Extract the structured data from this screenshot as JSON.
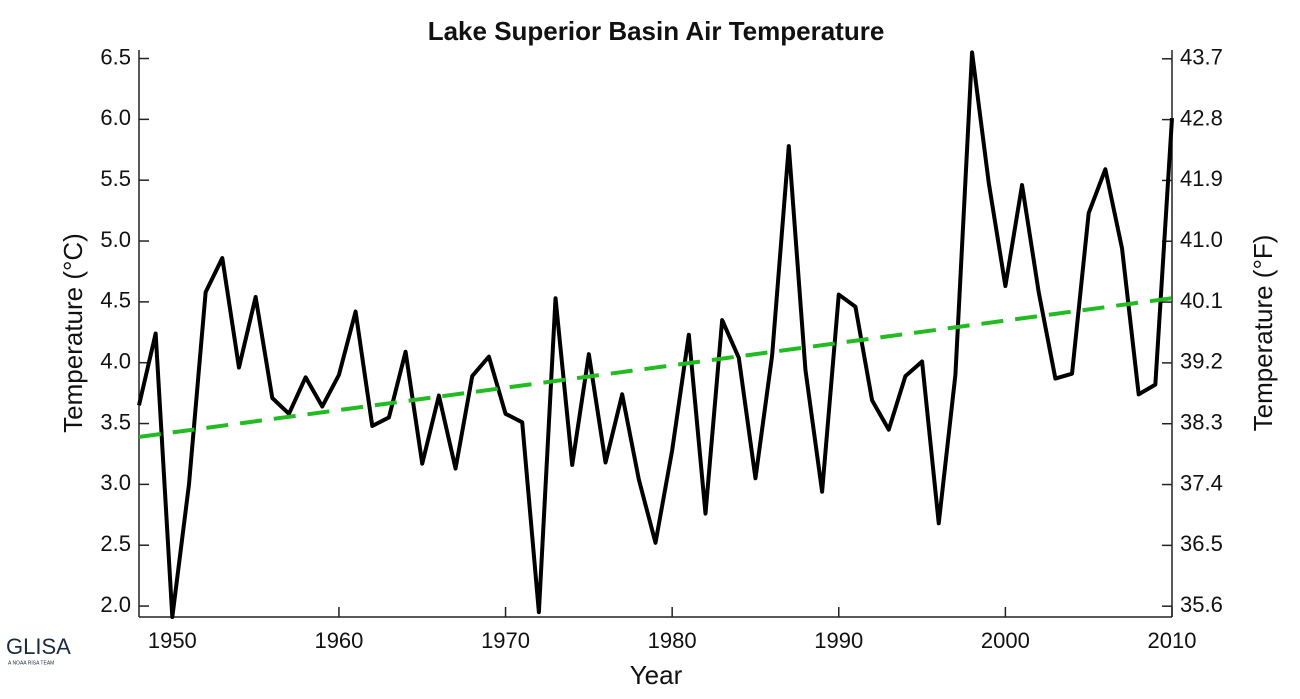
{
  "chart_data": {
    "type": "line",
    "title": "Lake Superior Basin Air Temperature",
    "x_label": "Year",
    "y_label": "Temperature (°C)",
    "y2_label": "Temperature (°F)",
    "xlim": [
      1948,
      2010
    ],
    "xticks": [
      1950,
      1960,
      1970,
      1980,
      1990,
      2000,
      2010
    ],
    "ylim": [
      1.91,
      6.57
    ],
    "yticks": [
      {
        "value": 2,
        "label": "2.0"
      },
      2.5,
      {
        "value": 3,
        "label": "3.0"
      },
      3.5,
      {
        "value": 4,
        "label": "4.0"
      },
      4.5,
      {
        "value": 5,
        "label": "5.0"
      },
      5.5,
      {
        "value": 6,
        "label": "6.0"
      },
      6.5
    ],
    "y2lim": [
      35.44,
      43.83
    ],
    "y2ticks": [
      35.6,
      36.5,
      37.4,
      38.3,
      39.2,
      {
        "value": 41,
        "label": "41.0"
      },
      40.1,
      41.9,
      42.8,
      43.7
    ],
    "series": [
      {
        "color": "#000000",
        "x": [
          1948,
          1949,
          1950,
          1951,
          1952,
          1953,
          1954,
          1955,
          1956,
          1957,
          1958,
          1959,
          1960,
          1961,
          1962,
          1963,
          1964,
          1965,
          1966,
          1967,
          1968,
          1969,
          1970,
          1971,
          1972,
          1973,
          1974,
          1975,
          1976,
          1977,
          1978,
          1979,
          1980,
          1981,
          1982,
          1983,
          1984,
          1985,
          1986,
          1987,
          1988,
          1989,
          1990,
          1991,
          1992,
          1993,
          1994,
          1995,
          1996,
          1997,
          1998,
          1999,
          2000,
          2001,
          2002,
          2003,
          2004,
          2005,
          2006,
          2007,
          2008,
          2009,
          2010
        ],
        "values": [
          3.65,
          4.24,
          1.91,
          3.0,
          4.58,
          4.86,
          3.96,
          4.54,
          3.71,
          3.58,
          3.88,
          3.64,
          3.9,
          4.42,
          3.48,
          3.55,
          4.09,
          3.17,
          3.73,
          3.13,
          3.89,
          4.05,
          3.58,
          3.51,
          1.95,
          4.53,
          3.16,
          4.07,
          3.18,
          3.74,
          3.04,
          2.52,
          3.28,
          4.23,
          2.76,
          4.35,
          4.04,
          3.05,
          4.06,
          5.78,
          3.94,
          2.94,
          4.56,
          4.46,
          3.69,
          3.45,
          3.89,
          4.01,
          2.68,
          3.9,
          6.55,
          5.48,
          4.63,
          5.46,
          4.58,
          3.87,
          3.91,
          5.23,
          5.59,
          4.94,
          3.74,
          3.82,
          6.01
        ]
      },
      {
        "color": "#22bb22",
        "dashed": true,
        "x": [
          1948,
          2010
        ],
        "values": [
          3.39,
          4.53
        ]
      }
    ]
  },
  "logo": {
    "text": "GLISA",
    "tagline": "A NOAA RISA TEAM"
  }
}
